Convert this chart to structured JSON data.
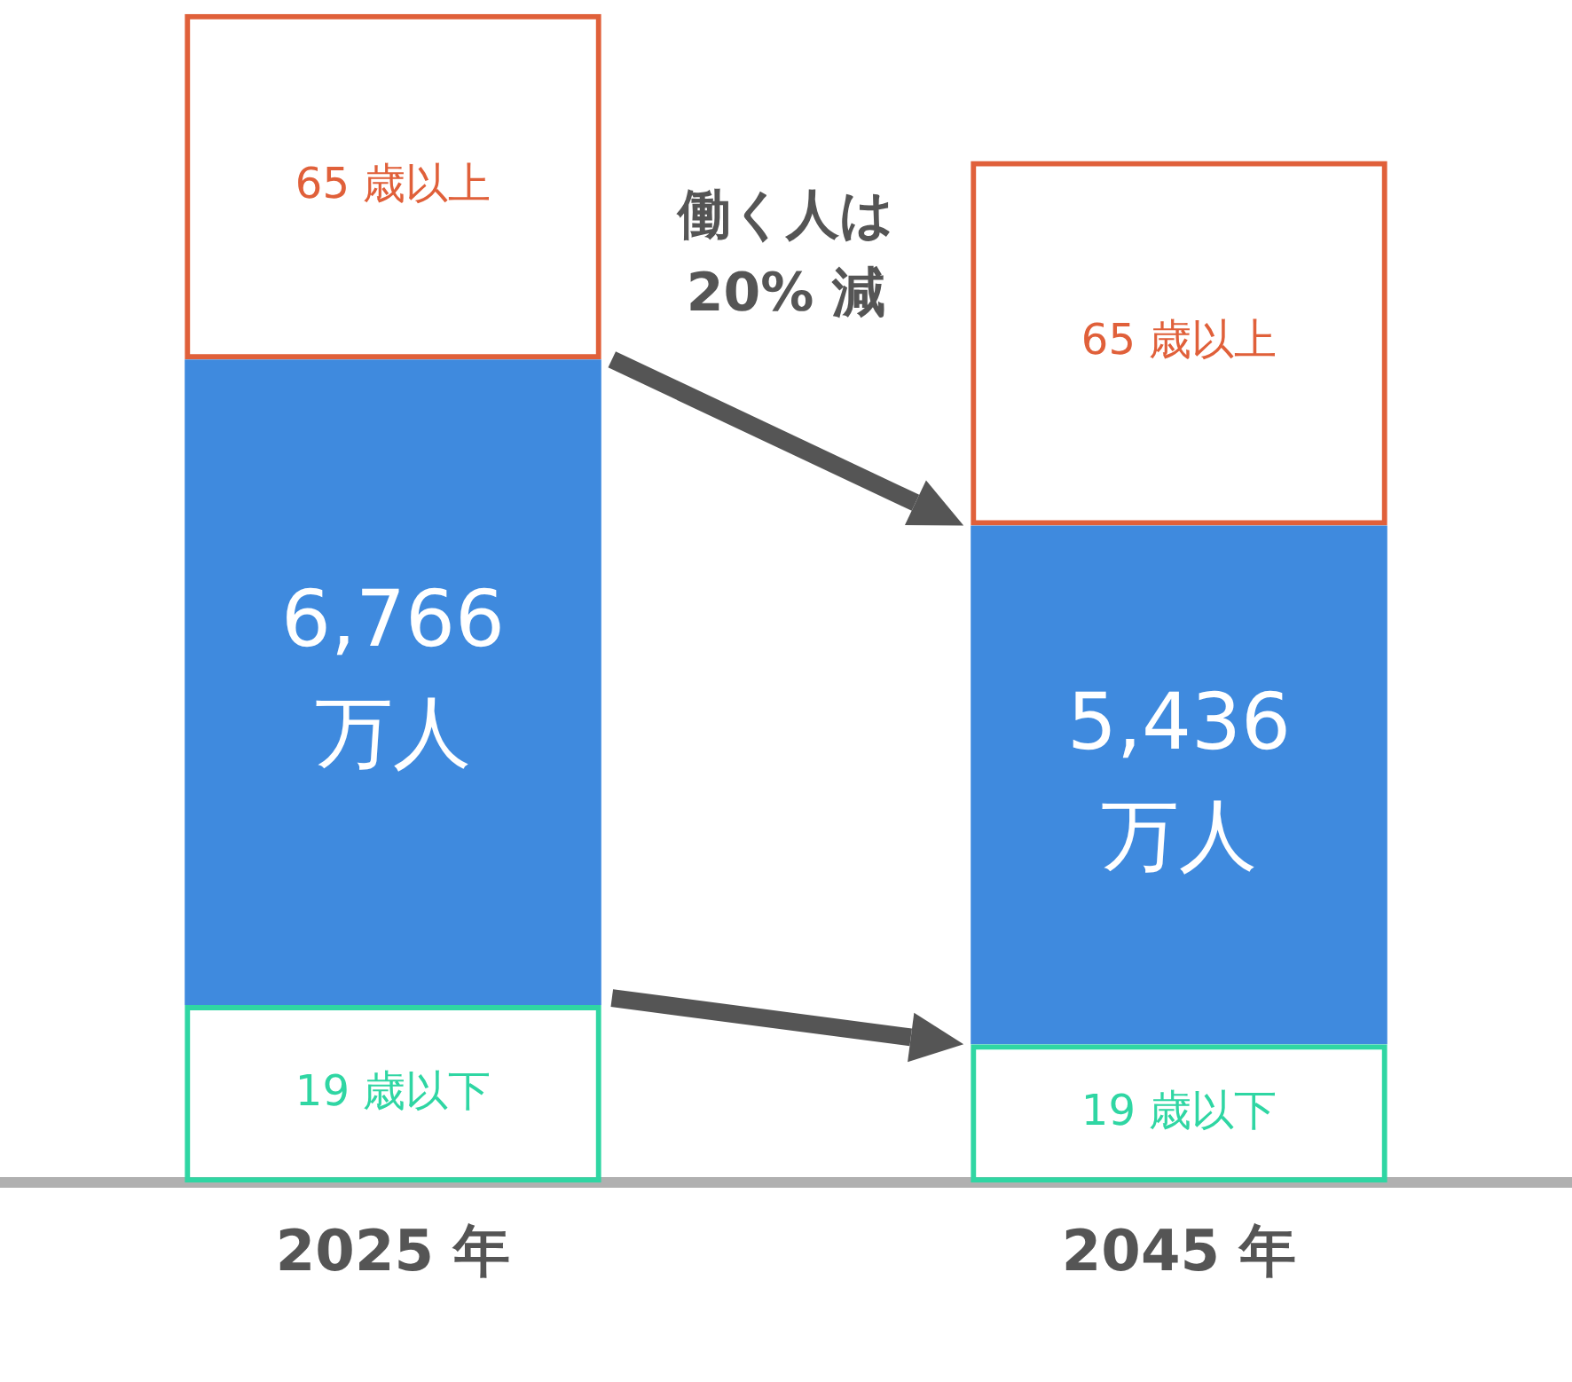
{
  "chart_data": {
    "type": "bar",
    "stacked": true,
    "categories": [
      "2025 年",
      "2045 年"
    ],
    "series": [
      {
        "name": "19 歳以下",
        "color": "#2fd6a3",
        "values": [
          1860,
          1450
        ]
      },
      {
        "color": "#3f8ade",
        "values": [
          6766,
          5436
        ],
        "value_labels": [
          "6,766\n万人",
          "5,436\n万人"
        ]
      },
      {
        "name": "65 歳以上",
        "color": "#e0603a",
        "values": [
          3620,
          3820
        ]
      }
    ],
    "ylim": [
      0,
      12300
    ],
    "tick_labels": "x",
    "grid": false,
    "legend": false,
    "annotations": [
      "働く人は\n20% 減"
    ]
  }
}
